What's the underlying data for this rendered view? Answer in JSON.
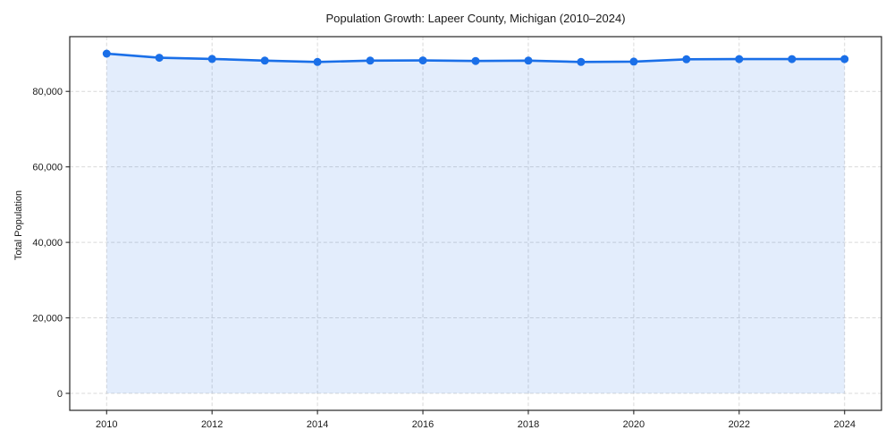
{
  "figure": {
    "title": "Population Growth: Lapeer County, Michigan (2010–2024)",
    "y_axis_title": "Total Population"
  },
  "chart_data": {
    "type": "line",
    "title": "Population Growth: Lapeer County, Michigan (2010–2024)",
    "xlabel": "",
    "ylabel": "Total Population",
    "x": [
      2010,
      2011,
      2012,
      2013,
      2014,
      2015,
      2016,
      2017,
      2018,
      2019,
      2020,
      2021,
      2022,
      2023,
      2024
    ],
    "series": [
      {
        "name": "Total Population",
        "values": [
          90000,
          88900,
          88600,
          88150,
          87800,
          88150,
          88200,
          88050,
          88150,
          87800,
          87900,
          88500,
          88550,
          88550,
          88550
        ]
      }
    ],
    "xlim": [
      2009.3,
      2024.7
    ],
    "ylim": [
      -4500,
      94500
    ],
    "xticks": [
      2010,
      2012,
      2014,
      2016,
      2018,
      2020,
      2022,
      2024
    ],
    "xtick_labels": [
      "2010",
      "2012",
      "2014",
      "2016",
      "2018",
      "2020",
      "2022",
      "2024"
    ],
    "yticks": [
      0,
      20000,
      40000,
      60000,
      80000
    ],
    "ytick_labels": [
      "0",
      "20,000",
      "40,000",
      "60,000",
      "80,000"
    ],
    "grid": true,
    "grid_style": "dashed",
    "legend": false,
    "area_fill": true,
    "area_baseline": 0,
    "marker": "circle",
    "colors": {
      "line": "#1a6fe8",
      "marker": "#1a6fe8",
      "area_fill_opacity": 0.12,
      "grid": "#d9d9d9",
      "spine": "#262626",
      "text": "#1a1a1a",
      "background": "#ffffff"
    }
  }
}
